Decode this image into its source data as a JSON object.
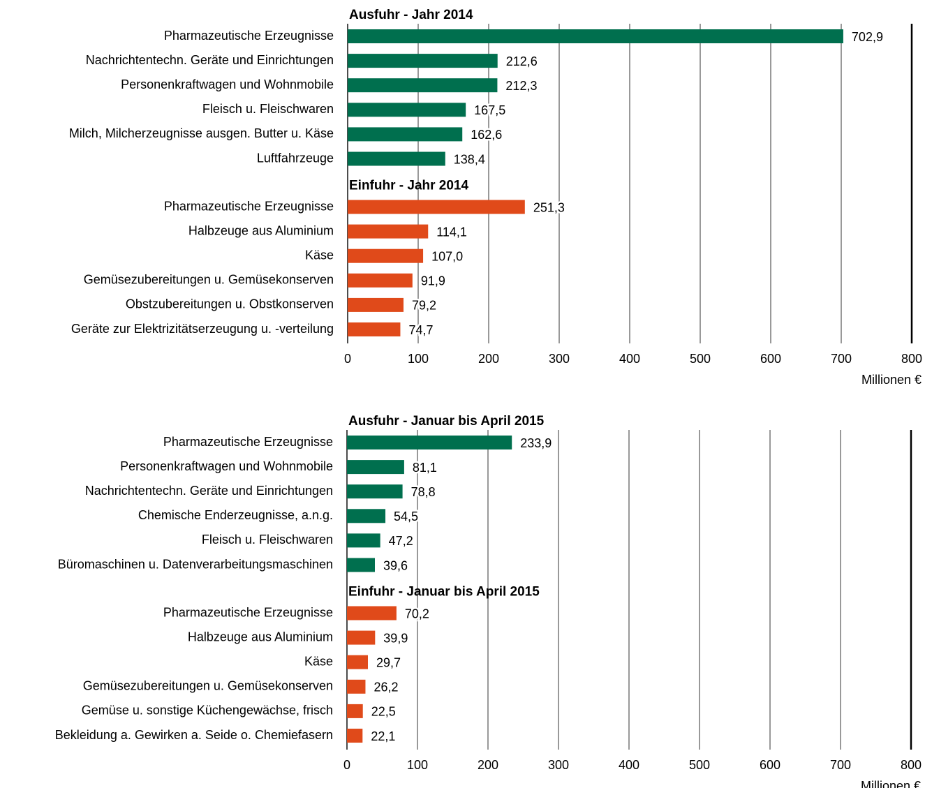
{
  "chart_data": [
    {
      "type": "bar",
      "orientation": "horizontal",
      "xlim": [
        0,
        800
      ],
      "xticks": [
        0,
        100,
        200,
        300,
        400,
        500,
        600,
        700,
        800
      ],
      "xlabel": "Millionen €",
      "grid": true,
      "groups": [
        {
          "title": "Ausfuhr - Jahr 2014",
          "color": "#006f4e",
          "categories": [
            "Pharmazeutische Erzeugnisse",
            "Nachrichtentechn. Geräte und Einrichtungen",
            "Personenkraftwagen und Wohnmobile",
            "Fleisch u. Fleischwaren",
            "Milch, Milcherzeugnisse ausgen. Butter u. Käse",
            "Luftfahrzeuge"
          ],
          "values": [
            702.9,
            212.6,
            212.3,
            167.5,
            162.6,
            138.4
          ],
          "value_labels": [
            "702,9",
            "212,6",
            "212,3",
            "167,5",
            "162,6",
            "138,4"
          ]
        },
        {
          "title": "Einfuhr - Jahr 2014",
          "color": "#e04a1a",
          "categories": [
            "Pharmazeutische Erzeugnisse",
            "Halbzeuge aus Aluminium",
            "Käse",
            "Gemüsezubereitungen u. Gemüsekonserven",
            "Obstzubereitungen u. Obstkonserven",
            "Geräte zur Elektrizitätserzeugung u. -verteilung"
          ],
          "values": [
            251.3,
            114.1,
            107.0,
            91.9,
            79.2,
            74.7
          ],
          "value_labels": [
            "251,3",
            "114,1",
            "107,0",
            "91,9",
            "79,2",
            "74,7"
          ]
        }
      ]
    },
    {
      "type": "bar",
      "orientation": "horizontal",
      "xlim": [
        0,
        800
      ],
      "xticks": [
        0,
        100,
        200,
        300,
        400,
        500,
        600,
        700,
        800
      ],
      "xlabel": "Millionen €",
      "grid": true,
      "groups": [
        {
          "title": "Ausfuhr - Januar bis April 2015",
          "color": "#006f4e",
          "categories": [
            "Pharmazeutische Erzeugnisse",
            "Personenkraftwagen und Wohnmobile",
            "Nachrichtentechn. Geräte und Einrichtungen",
            "Chemische Enderzeugnisse, a.n.g.",
            "Fleisch u. Fleischwaren",
            "Büromaschinen u. Datenverarbeitungsmaschinen"
          ],
          "values": [
            233.9,
            81.1,
            78.8,
            54.5,
            47.2,
            39.6
          ],
          "value_labels": [
            "233,9",
            "81,1",
            "78,8",
            "54,5",
            "47,2",
            "39,6"
          ]
        },
        {
          "title": "Einfuhr - Januar bis April 2015",
          "color": "#e04a1a",
          "categories": [
            "Pharmazeutische Erzeugnisse",
            "Halbzeuge aus Aluminium",
            "Käse",
            "Gemüsezubereitungen u. Gemüsekonserven",
            "Gemüse u. sonstige Küchengewächse, frisch",
            "Bekleidung a. Gewirken a. Seide o. Chemiefasern"
          ],
          "values": [
            70.2,
            39.9,
            29.7,
            26.2,
            22.5,
            22.1
          ],
          "value_labels": [
            "70,2",
            "39,9",
            "29,7",
            "26,2",
            "22,5",
            "22,1"
          ]
        }
      ]
    }
  ]
}
